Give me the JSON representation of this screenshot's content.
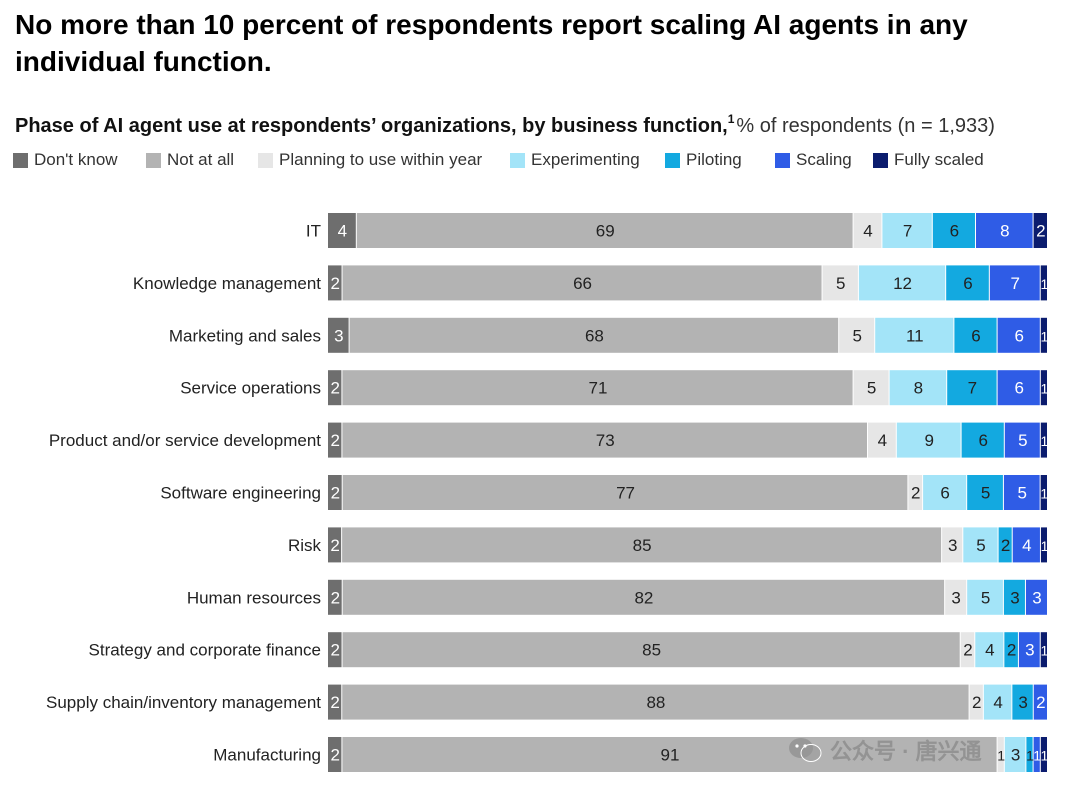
{
  "headline": "No more than 10 percent of respondents report scaling AI agents in any individual function.",
  "subtitle": {
    "bold": "Phase of AI agent use at respondents’ organizations, by business function,",
    "footnote": "1",
    "regular": "% of respondents (n = 1,933)"
  },
  "watermark": "公众号 · 唐兴通",
  "colors": {
    "Don't know": "#6e6e6e",
    "Not at all": "#b3b3b3",
    "Planning to use within year": "#e6e6e6",
    "Experimenting": "#a3e4f8",
    "Piloting": "#13a9e0",
    "Scaling": "#2f5ce6",
    "Fully scaled": "#0b1c6e"
  },
  "chart_data": {
    "type": "bar",
    "orientation": "horizontal",
    "stacked": true,
    "legend_placement": "top",
    "categories": [
      "IT",
      "Knowledge management",
      "Marketing and sales",
      "Service operations",
      "Product and/or service development",
      "Software engineering",
      "Risk",
      "Human resources",
      "Strategy and corporate finance",
      "Supply chain/inventory management",
      "Manufacturing"
    ],
    "series": [
      {
        "name": "Don't know",
        "values": [
          4,
          2,
          3,
          2,
          2,
          2,
          2,
          2,
          2,
          2,
          2
        ]
      },
      {
        "name": "Not at all",
        "values": [
          69,
          66,
          68,
          71,
          73,
          77,
          85,
          82,
          85,
          88,
          91
        ]
      },
      {
        "name": "Planning to use within year",
        "values": [
          4,
          5,
          5,
          5,
          4,
          2,
          3,
          3,
          2,
          2,
          1
        ]
      },
      {
        "name": "Experimenting",
        "values": [
          7,
          12,
          11,
          8,
          9,
          6,
          5,
          5,
          4,
          4,
          3
        ]
      },
      {
        "name": "Piloting",
        "values": [
          6,
          6,
          6,
          7,
          6,
          5,
          2,
          3,
          2,
          3,
          1
        ]
      },
      {
        "name": "Scaling",
        "values": [
          8,
          7,
          6,
          6,
          5,
          5,
          4,
          3,
          3,
          2,
          1
        ]
      },
      {
        "name": "Fully scaled",
        "values": [
          2,
          1,
          1,
          1,
          1,
          1,
          1,
          0,
          1,
          0,
          1
        ]
      }
    ],
    "label_colors": [
      "#ffffff",
      "#222222",
      "#222222",
      "#222222",
      "#222222",
      "#ffffff",
      "#ffffff"
    ]
  }
}
